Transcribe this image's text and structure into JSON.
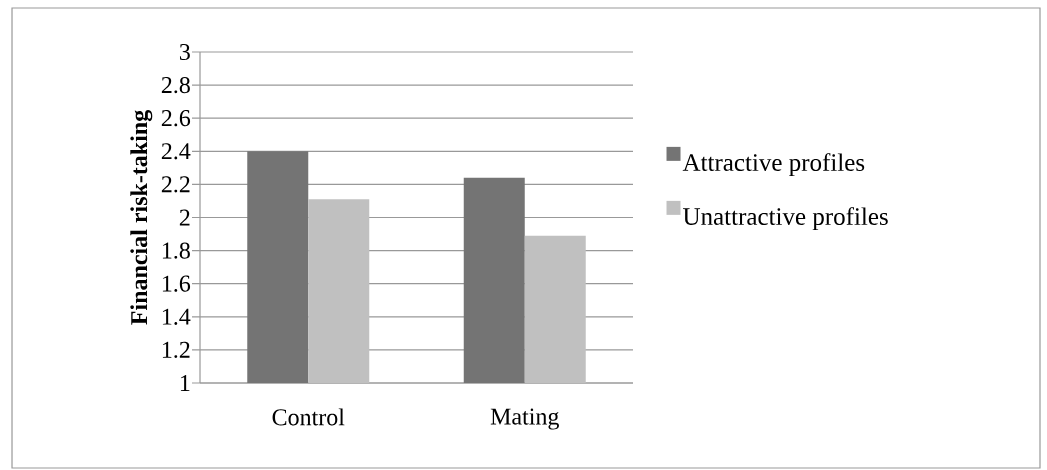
{
  "chart_data": {
    "type": "bar",
    "ylabel": "**Financial risk-taking**",
    "categories": [
      "Control",
      "Mating"
    ],
    "series": [
      {
        "name": "Attractive profiles",
        "color": "#747474",
        "values": [
          2.4,
          2.24
        ]
      },
      {
        "name": "Unattractive profiles",
        "color": "#c0c0c0",
        "values": [
          2.11,
          1.89
        ]
      }
    ],
    "ylim": [
      1,
      3
    ],
    "yticks": [
      1,
      1.2,
      1.4,
      1.6,
      1.8,
      2,
      2.2,
      2.4,
      2.6,
      2.8,
      3
    ],
    "grid": "y",
    "legend": "right"
  }
}
